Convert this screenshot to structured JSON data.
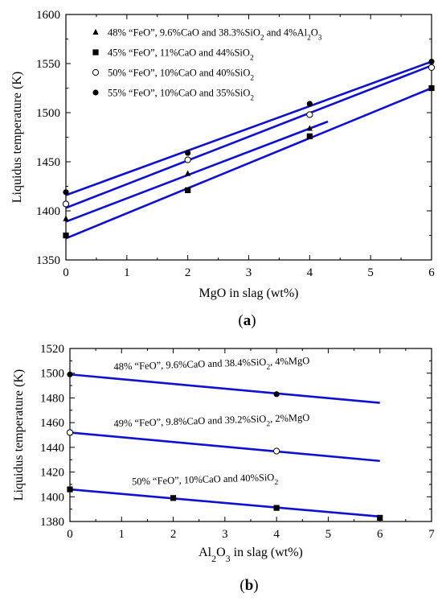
{
  "chart_data": [
    {
      "panel_label": "(a)",
      "type": "scatter",
      "xlabel": "MgO in slag (wt%)",
      "ylabel": "Liquidus temperature (K)",
      "xlim": [
        0,
        6
      ],
      "ylim": [
        1350,
        1600
      ],
      "xticks": [
        "0",
        "1",
        "2",
        "3",
        "4",
        "5",
        "6"
      ],
      "yticks": [
        "1350",
        "1400",
        "1450",
        "1500",
        "1550",
        "1600"
      ],
      "legend_position": "top-left",
      "fit_line_color": "#1010d0",
      "series": [
        {
          "name": "48% “FeO”, 9.6%CaO and 38.3%SiO₂ and 4%Al₂O₃",
          "marker": "triangle",
          "x": [
            0,
            2,
            4
          ],
          "y": [
            1392,
            1438,
            1484
          ],
          "fit": {
            "x": [
              0,
              4.3
            ],
            "y": [
              1389,
              1491
            ]
          }
        },
        {
          "name": "45% “FeO”, 11%CaO and 44%SiO₂",
          "marker": "square",
          "x": [
            0,
            2,
            4,
            6
          ],
          "y": [
            1375,
            1421,
            1476,
            1525
          ],
          "fit": {
            "x": [
              0,
              6
            ],
            "y": [
              1372,
              1525
            ]
          }
        },
        {
          "name": "50% “FeO”, 10%CaO and 40%SiO₂",
          "marker": "open-circle",
          "x": [
            0,
            2,
            4,
            6
          ],
          "y": [
            1407,
            1452,
            1498,
            1546
          ],
          "fit": {
            "x": [
              0,
              6
            ],
            "y": [
              1403,
              1548
            ]
          }
        },
        {
          "name": "55% “FeO”, 10%CaO and 35%SiO₂",
          "marker": "filled-circle",
          "x": [
            0,
            2,
            4,
            6
          ],
          "y": [
            1419,
            1459,
            1509,
            1552
          ],
          "fit": {
            "x": [
              0,
              6
            ],
            "y": [
              1416,
              1552
            ]
          }
        }
      ]
    },
    {
      "panel_label": "(b)",
      "type": "scatter",
      "xlabel": "Al₂O₃ in slag (wt%)",
      "ylabel": "Liquidus temperature (K)",
      "xlim": [
        0,
        7
      ],
      "ylim": [
        1380,
        1520
      ],
      "xticks": [
        "0",
        "1",
        "2",
        "3",
        "4",
        "5",
        "6",
        "7"
      ],
      "yticks": [
        "1380",
        "1400",
        "1420",
        "1440",
        "1460",
        "1480",
        "1500",
        "1520"
      ],
      "fit_line_color": "#1010d0",
      "series": [
        {
          "name": "48% “FeO”, 9.6%CaO and 38.4%SiO₂, 4%MgO",
          "marker": "filled-circle",
          "x": [
            0,
            4
          ],
          "y": [
            1499,
            1483
          ],
          "fit": {
            "x": [
              0,
              6
            ],
            "y": [
              1499,
              1476
            ]
          }
        },
        {
          "name": "49% “FeO”, 9.8%CaO and 39.2%SiO₂, 2%MgO",
          "marker": "open-circle",
          "x": [
            0,
            4
          ],
          "y": [
            1452,
            1437
          ],
          "fit": {
            "x": [
              0,
              6
            ],
            "y": [
              1452,
              1429
            ]
          }
        },
        {
          "name": "50% “FeO”, 10%CaO and 40%SiO₂",
          "marker": "square",
          "x": [
            0,
            2,
            4,
            6
          ],
          "y": [
            1406,
            1399,
            1391,
            1383
          ],
          "fit": {
            "x": [
              0,
              6
            ],
            "y": [
              1406,
              1384
            ]
          }
        }
      ]
    }
  ]
}
